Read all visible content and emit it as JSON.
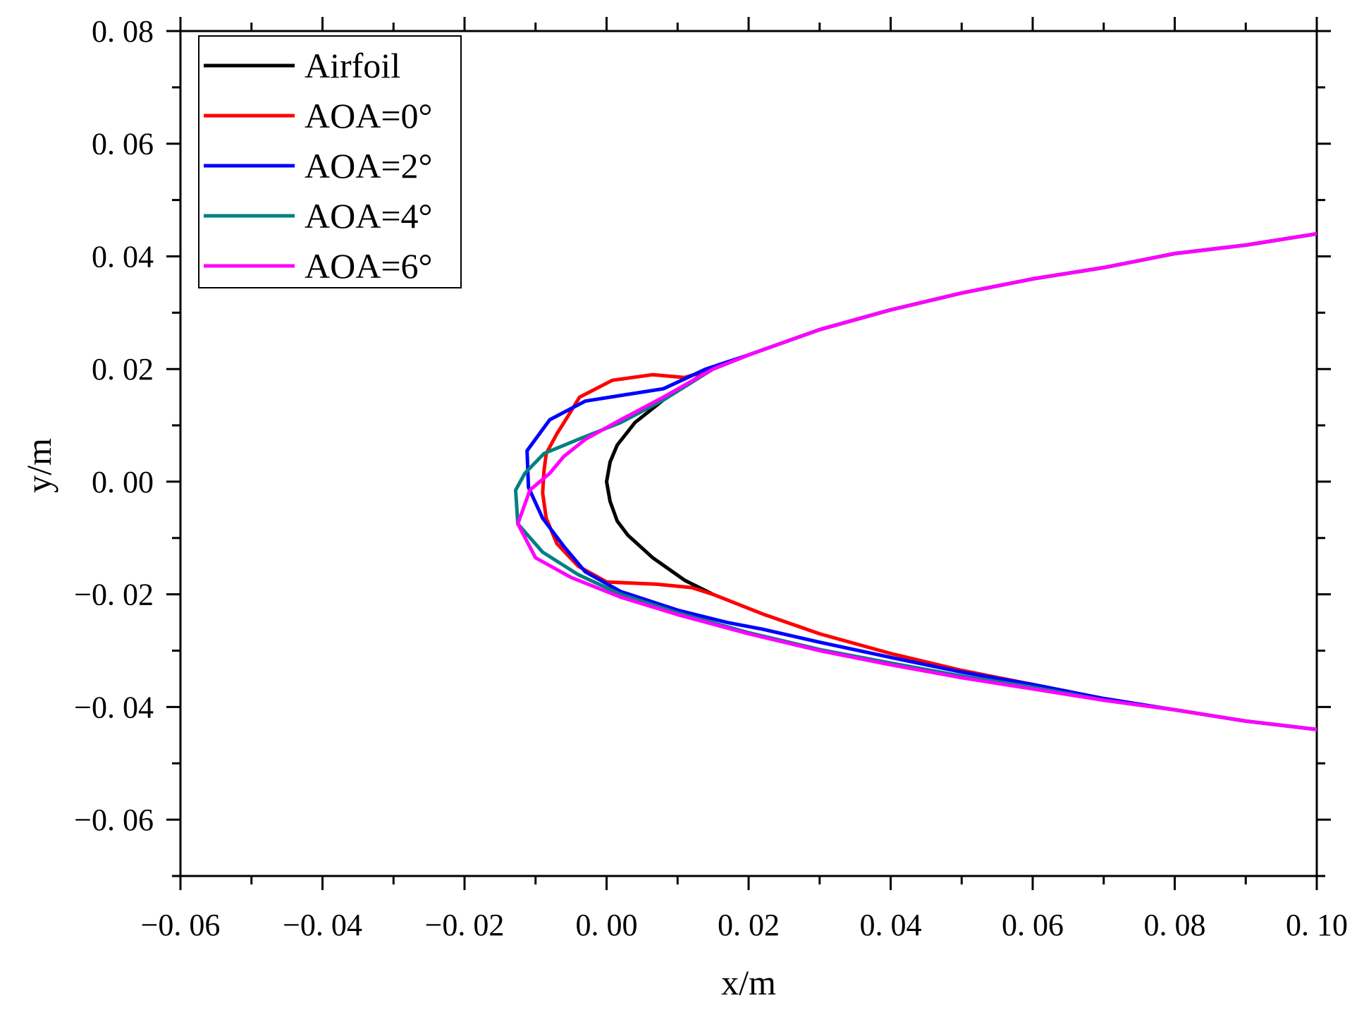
{
  "chart_data": {
    "type": "line",
    "title": "",
    "xlabel": "x/m",
    "ylabel": "y/m",
    "xlim": [
      -0.06,
      0.1
    ],
    "ylim": [
      -0.07,
      0.08
    ],
    "x_ticks": [
      -0.06,
      -0.04,
      -0.02,
      0.0,
      0.02,
      0.04,
      0.06,
      0.08,
      0.1
    ],
    "x_tick_labels": [
      "−0. 06",
      "−0. 04",
      "−0. 02",
      "0. 00",
      "0. 02",
      "0. 04",
      "0. 06",
      "0. 08",
      "0. 10"
    ],
    "y_ticks": [
      -0.06,
      -0.04,
      -0.02,
      0.0,
      0.02,
      0.04,
      0.06,
      0.08
    ],
    "y_tick_labels": [
      "−0. 06",
      "−0. 04",
      "−0. 02",
      "0. 00",
      "0. 02",
      "0. 04",
      "0. 06",
      "0. 08"
    ],
    "grid": false,
    "legend_position": "top-left",
    "series": [
      {
        "name": "Airfoil",
        "color": "#000000",
        "points": [
          [
            0.015,
            -0.02
          ],
          [
            0.011,
            -0.0175
          ],
          [
            0.0065,
            -0.0135
          ],
          [
            0.003,
            -0.0095
          ],
          [
            0.0015,
            -0.007
          ],
          [
            0.0005,
            -0.0035
          ],
          [
            0.0,
            0.0
          ],
          [
            0.0005,
            0.0035
          ],
          [
            0.0015,
            0.0065
          ],
          [
            0.004,
            0.0105
          ],
          [
            0.008,
            0.0145
          ],
          [
            0.014,
            0.0195
          ],
          [
            0.02,
            0.0225
          ],
          [
            0.03,
            0.027
          ],
          [
            0.04,
            0.0305
          ],
          [
            0.05,
            0.0335
          ],
          [
            0.06,
            0.036
          ],
          [
            0.07,
            0.038
          ],
          [
            0.08,
            0.0405
          ],
          [
            0.09,
            0.042
          ],
          [
            0.1,
            0.044
          ]
        ]
      },
      {
        "name": "AOA=0°",
        "color": "#ff0000",
        "points": [
          [
            0.1,
            -0.044
          ],
          [
            0.09,
            -0.0425
          ],
          [
            0.08,
            -0.0405
          ],
          [
            0.07,
            -0.0385
          ],
          [
            0.06,
            -0.036
          ],
          [
            0.05,
            -0.0335
          ],
          [
            0.04,
            -0.0305
          ],
          [
            0.03,
            -0.027
          ],
          [
            0.022,
            -0.0235
          ],
          [
            0.015,
            -0.02
          ],
          [
            0.012,
            -0.0188
          ],
          [
            0.007,
            -0.0182
          ],
          [
            0.0,
            -0.0178
          ],
          [
            -0.004,
            -0.015
          ],
          [
            -0.007,
            -0.011
          ],
          [
            -0.0085,
            -0.0065
          ],
          [
            -0.009,
            -0.002
          ],
          [
            -0.0088,
            0.002
          ],
          [
            -0.0085,
            0.005
          ],
          [
            -0.007,
            0.0085
          ],
          [
            -0.0055,
            0.0115
          ],
          [
            -0.0038,
            0.015
          ],
          [
            0.0008,
            0.018
          ],
          [
            0.0065,
            0.019
          ],
          [
            0.011,
            0.0185
          ],
          [
            0.015,
            0.02
          ],
          [
            0.02,
            0.0225
          ],
          [
            0.03,
            0.027
          ],
          [
            0.04,
            0.0305
          ],
          [
            0.05,
            0.0335
          ],
          [
            0.06,
            0.036
          ],
          [
            0.07,
            0.038
          ],
          [
            0.08,
            0.0405
          ],
          [
            0.09,
            0.042
          ],
          [
            0.1,
            0.044
          ]
        ]
      },
      {
        "name": "AOA=2°",
        "color": "#0000ff",
        "points": [
          [
            0.1,
            -0.044
          ],
          [
            0.09,
            -0.0425
          ],
          [
            0.08,
            -0.0405
          ],
          [
            0.07,
            -0.0385
          ],
          [
            0.06,
            -0.036
          ],
          [
            0.05,
            -0.0338
          ],
          [
            0.04,
            -0.0312
          ],
          [
            0.03,
            -0.0285
          ],
          [
            0.022,
            -0.0262
          ],
          [
            0.017,
            -0.025
          ],
          [
            0.01,
            -0.0228
          ],
          [
            0.002,
            -0.0195
          ],
          [
            -0.003,
            -0.016
          ],
          [
            -0.006,
            -0.0115
          ],
          [
            -0.009,
            -0.0065
          ],
          [
            -0.011,
            -0.001
          ],
          [
            -0.0112,
            0.0055
          ],
          [
            -0.008,
            0.011
          ],
          [
            -0.003,
            0.0143
          ],
          [
            0.003,
            0.0155
          ],
          [
            0.008,
            0.0165
          ],
          [
            0.014,
            0.02
          ],
          [
            0.02,
            0.0225
          ],
          [
            0.03,
            0.027
          ],
          [
            0.04,
            0.0305
          ],
          [
            0.05,
            0.0335
          ],
          [
            0.06,
            0.036
          ],
          [
            0.07,
            0.038
          ],
          [
            0.08,
            0.0405
          ],
          [
            0.09,
            0.042
          ],
          [
            0.1,
            0.044
          ]
        ]
      },
      {
        "name": "AOA=4°",
        "color": "#008080",
        "points": [
          [
            0.1,
            -0.044
          ],
          [
            0.09,
            -0.0425
          ],
          [
            0.08,
            -0.0405
          ],
          [
            0.07,
            -0.0388
          ],
          [
            0.06,
            -0.0365
          ],
          [
            0.05,
            -0.0345
          ],
          [
            0.04,
            -0.0322
          ],
          [
            0.03,
            -0.0298
          ],
          [
            0.02,
            -0.0268
          ],
          [
            0.01,
            -0.0233
          ],
          [
            0.002,
            -0.02
          ],
          [
            -0.004,
            -0.0165
          ],
          [
            -0.009,
            -0.0125
          ],
          [
            -0.0125,
            -0.0075
          ],
          [
            -0.0128,
            -0.0015
          ],
          [
            -0.0115,
            0.0015
          ],
          [
            -0.0088,
            0.005
          ],
          [
            -0.004,
            0.0075
          ],
          [
            0.002,
            0.0105
          ],
          [
            0.008,
            0.0145
          ],
          [
            0.015,
            0.02
          ],
          [
            0.02,
            0.0225
          ],
          [
            0.03,
            0.027
          ],
          [
            0.04,
            0.0305
          ],
          [
            0.05,
            0.0335
          ],
          [
            0.06,
            0.036
          ],
          [
            0.07,
            0.038
          ],
          [
            0.08,
            0.0405
          ],
          [
            0.09,
            0.042
          ],
          [
            0.1,
            0.044
          ]
        ]
      },
      {
        "name": "AOA=6°",
        "color": "#ff00ff",
        "points": [
          [
            0.1,
            -0.044
          ],
          [
            0.09,
            -0.0425
          ],
          [
            0.08,
            -0.0405
          ],
          [
            0.07,
            -0.0388
          ],
          [
            0.06,
            -0.0368
          ],
          [
            0.05,
            -0.0348
          ],
          [
            0.04,
            -0.0325
          ],
          [
            0.03,
            -0.03
          ],
          [
            0.02,
            -0.027
          ],
          [
            0.01,
            -0.0236
          ],
          [
            0.002,
            -0.0205
          ],
          [
            -0.005,
            -0.017
          ],
          [
            -0.01,
            -0.0135
          ],
          [
            -0.0125,
            -0.0075
          ],
          [
            -0.0108,
            -0.0015
          ],
          [
            -0.008,
            0.0015
          ],
          [
            -0.006,
            0.0045
          ],
          [
            -0.003,
            0.0075
          ],
          [
            0.002,
            0.011
          ],
          [
            0.008,
            0.015
          ],
          [
            0.015,
            0.02
          ],
          [
            0.02,
            0.0225
          ],
          [
            0.03,
            0.027
          ],
          [
            0.04,
            0.0305
          ],
          [
            0.05,
            0.0335
          ],
          [
            0.06,
            0.036
          ],
          [
            0.07,
            0.038
          ],
          [
            0.08,
            0.0405
          ],
          [
            0.09,
            0.042
          ],
          [
            0.1,
            0.044
          ]
        ]
      }
    ]
  }
}
